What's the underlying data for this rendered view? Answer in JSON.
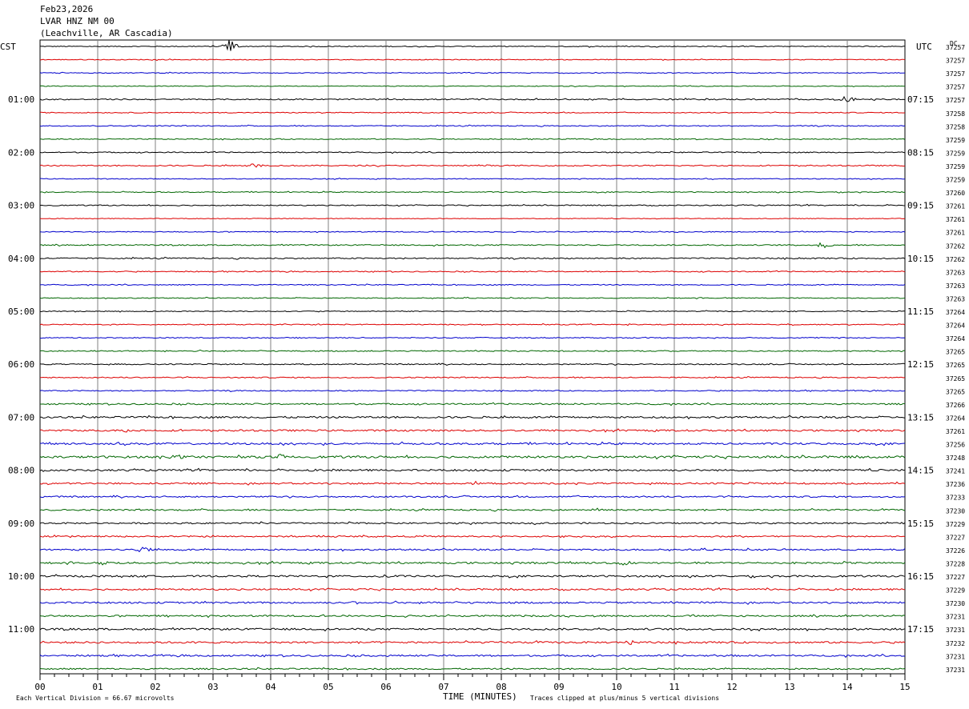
{
  "header": {
    "date": "Feb23,2026",
    "station": "LVAR HNZ NM 00",
    "location": "(Leachville, AR Cascadia)"
  },
  "left_zone": "CST",
  "right_zone": "UTC",
  "dc_header": "DC",
  "footer": {
    "scale": "Each Vertical Division =   66.67 microvolts",
    "xlabel": "TIME (MINUTES)",
    "clip": "Traces clipped at plus/minus 5 vertical divisions"
  },
  "colors": {
    "trace": [
      "#000000",
      "#dd0000",
      "#0000cc",
      "#006600"
    ],
    "grid": "#808080"
  },
  "chart_data": {
    "type": "line",
    "title": "Feb23,2026 LVAR HNZ NM 00 (Leachville, AR Cascadia)",
    "xlabel": "TIME (MINUTES)",
    "xlim": [
      0,
      15
    ],
    "xticks": [
      "00",
      "01",
      "02",
      "03",
      "04",
      "05",
      "06",
      "07",
      "08",
      "09",
      "10",
      "11",
      "12",
      "13",
      "14",
      "15"
    ],
    "rows_count": 48,
    "minutes_per_row": 15,
    "left_hours": [
      "CST",
      "01:00",
      "02:00",
      "03:00",
      "04:00",
      "05:00",
      "06:00",
      "07:00",
      "08:00",
      "09:00",
      "10:00",
      "11:00"
    ],
    "right_hours": [
      "UTC",
      "07:15",
      "08:15",
      "09:15",
      "10:15",
      "11:15",
      "12:15",
      "13:15",
      "14:15",
      "15:15",
      "16:15",
      "17:15"
    ],
    "dc_values": [
      37257,
      37257,
      37257,
      37257,
      37257,
      37258,
      37258,
      37259,
      37259,
      37259,
      37259,
      37260,
      37261,
      37261,
      37261,
      37262,
      37262,
      37263,
      37263,
      37263,
      37264,
      37264,
      37264,
      37265,
      37265,
      37265,
      37265,
      37266,
      37264,
      37261,
      37256,
      37248,
      37241,
      37236,
      37233,
      37230,
      37229,
      37227,
      37226,
      37228,
      37227,
      37229,
      37230,
      37231,
      37231,
      37232,
      37231,
      37231
    ],
    "activity": [
      0.25,
      0.22,
      0.22,
      0.2,
      0.32,
      0.24,
      0.26,
      0.25,
      0.28,
      0.3,
      0.22,
      0.25,
      0.28,
      0.18,
      0.24,
      0.3,
      0.34,
      0.28,
      0.26,
      0.24,
      0.25,
      0.26,
      0.26,
      0.3,
      0.3,
      0.3,
      0.28,
      0.4,
      0.5,
      0.48,
      0.5,
      0.6,
      0.5,
      0.46,
      0.4,
      0.4,
      0.4,
      0.38,
      0.42,
      0.5,
      0.48,
      0.45,
      0.48,
      0.45,
      0.5,
      0.5,
      0.45,
      0.4
    ],
    "events": [
      {
        "row": 0,
        "minute": 3.3,
        "amplitude": 3
      },
      {
        "row": 4,
        "minute": 14.0,
        "amplitude": 1.5
      },
      {
        "row": 9,
        "minute": 3.7,
        "amplitude": 1.2
      },
      {
        "row": 15,
        "minute": 13.6,
        "amplitude": 1.5
      },
      {
        "row": 29,
        "minute": 1.5,
        "amplitude": 0.8
      },
      {
        "row": 31,
        "minute": 2.4,
        "amplitude": 1.2
      },
      {
        "row": 31,
        "minute": 4.2,
        "amplitude": 1.0
      },
      {
        "row": 33,
        "minute": 7.5,
        "amplitude": 0.8
      },
      {
        "row": 35,
        "minute": 9.7,
        "amplitude": 0.8
      },
      {
        "row": 38,
        "minute": 1.8,
        "amplitude": 1.4
      },
      {
        "row": 39,
        "minute": 1.1,
        "amplitude": 1.0
      },
      {
        "row": 39,
        "minute": 10.1,
        "amplitude": 1.0
      },
      {
        "row": 40,
        "minute": 6.0,
        "amplitude": 1.0
      },
      {
        "row": 42,
        "minute": 5.5,
        "amplitude": 0.9
      },
      {
        "row": 42,
        "minute": 11.7,
        "amplitude": 0.9
      },
      {
        "row": 45,
        "minute": 10.2,
        "amplitude": 1.0
      }
    ]
  }
}
